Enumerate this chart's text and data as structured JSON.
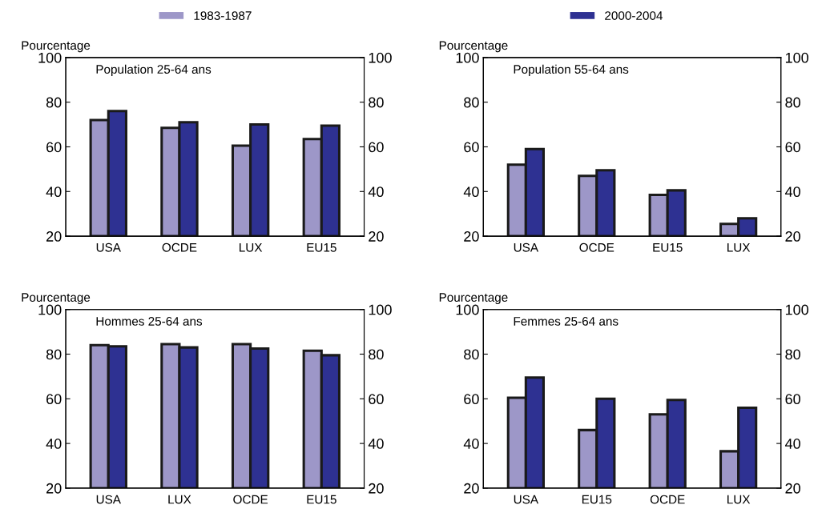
{
  "chart_data": [
    {
      "type": "bar",
      "title": "Population 25-64 ans",
      "ylabel": "Pourcentage",
      "categories": [
        "USA",
        "OCDE",
        "LUX",
        "EU15"
      ],
      "legend": "top",
      "series": [
        {
          "name": "1983-1987",
          "color": "#9d97c8",
          "values": [
            72,
            68.5,
            60.5,
            63.5
          ]
        },
        {
          "name": "2000-2004",
          "color": "#2e3192",
          "values": [
            76,
            71,
            70,
            69.5
          ]
        }
      ],
      "ylim": [
        20,
        100
      ],
      "yticks": [
        20,
        40,
        60,
        80,
        100
      ],
      "y2lim": [
        20,
        100
      ],
      "y2ticks": [
        20,
        40,
        60,
        80,
        100
      ],
      "grid": false
    },
    {
      "type": "bar",
      "title": "Population 55-64 ans",
      "ylabel": "Pourcentage",
      "categories": [
        "USA",
        "OCDE",
        "EU15",
        "LUX"
      ],
      "series": [
        {
          "color": "#9d97c8",
          "values": [
            52,
            47,
            38.5,
            25.5
          ]
        },
        {
          "color": "#2e3192",
          "values": [
            59,
            49.5,
            40.5,
            28
          ]
        }
      ],
      "ylim": [
        20,
        100
      ],
      "yticks": [
        20,
        40,
        60,
        80,
        100
      ],
      "y2lim": [
        20,
        100
      ],
      "y2ticks": [
        20,
        40,
        60,
        80,
        100
      ],
      "grid": false
    },
    {
      "type": "bar",
      "title": "Hommes 25-64 ans",
      "ylabel": "Pourcentage",
      "categories": [
        "USA",
        "LUX",
        "OCDE",
        "EU15"
      ],
      "series": [
        {
          "color": "#9d97c8",
          "values": [
            84,
            84.5,
            84.5,
            81.5
          ]
        },
        {
          "color": "#2e3192",
          "values": [
            83.5,
            83,
            82.5,
            79.5
          ]
        }
      ],
      "ylim": [
        20,
        100
      ],
      "yticks": [
        20,
        40,
        60,
        80,
        100
      ],
      "y2lim": [
        20,
        100
      ],
      "y2ticks": [
        20,
        40,
        60,
        80,
        100
      ],
      "grid": false
    },
    {
      "type": "bar",
      "title": "Femmes 25-64 ans",
      "ylabel": "Pourcentage",
      "categories": [
        "USA",
        "EU15",
        "OCDE",
        "LUX"
      ],
      "series": [
        {
          "color": "#9d97c8",
          "values": [
            60.5,
            46,
            53,
            36.5
          ]
        },
        {
          "color": "#2e3192",
          "values": [
            69.5,
            60,
            59.5,
            56
          ]
        }
      ],
      "ylim": [
        20,
        100
      ],
      "yticks": [
        20,
        40,
        60,
        80,
        100
      ],
      "y2lim": [
        20,
        100
      ],
      "y2ticks": [
        20,
        40,
        60,
        80,
        100
      ],
      "grid": false
    }
  ]
}
